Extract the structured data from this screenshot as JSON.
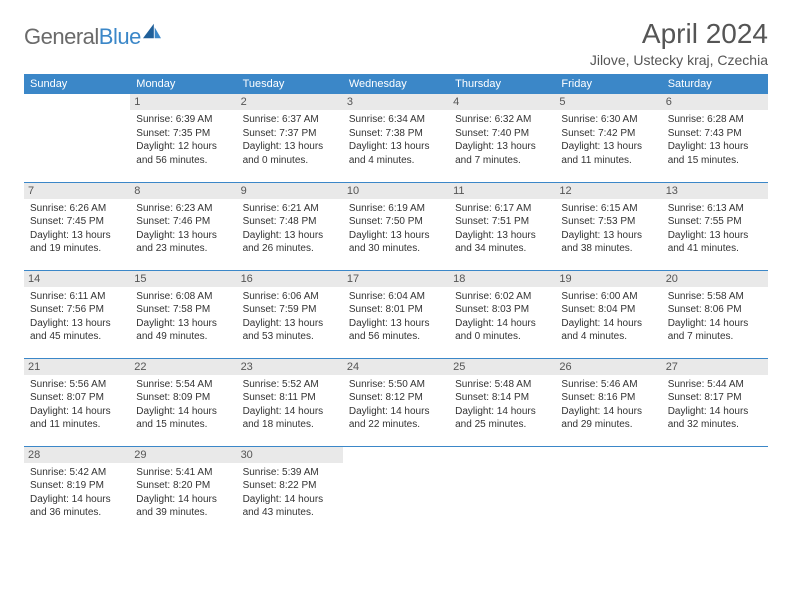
{
  "brand": {
    "part1": "General",
    "part2": "Blue"
  },
  "title": "April 2024",
  "location": "Jilove, Ustecky kraj, Czechia",
  "colors": {
    "header_bg": "#3b87c8",
    "header_text": "#ffffff",
    "daynum_bg": "#e9e9e9",
    "border": "#3b87c8",
    "logo_gray": "#6a6a6a",
    "logo_blue": "#3b87c8"
  },
  "weekdays": [
    "Sunday",
    "Monday",
    "Tuesday",
    "Wednesday",
    "Thursday",
    "Friday",
    "Saturday"
  ],
  "weeks": [
    [
      {
        "empty": true
      },
      {
        "n": "1",
        "sr": "Sunrise: 6:39 AM",
        "ss": "Sunset: 7:35 PM",
        "d1": "Daylight: 12 hours",
        "d2": "and 56 minutes."
      },
      {
        "n": "2",
        "sr": "Sunrise: 6:37 AM",
        "ss": "Sunset: 7:37 PM",
        "d1": "Daylight: 13 hours",
        "d2": "and 0 minutes."
      },
      {
        "n": "3",
        "sr": "Sunrise: 6:34 AM",
        "ss": "Sunset: 7:38 PM",
        "d1": "Daylight: 13 hours",
        "d2": "and 4 minutes."
      },
      {
        "n": "4",
        "sr": "Sunrise: 6:32 AM",
        "ss": "Sunset: 7:40 PM",
        "d1": "Daylight: 13 hours",
        "d2": "and 7 minutes."
      },
      {
        "n": "5",
        "sr": "Sunrise: 6:30 AM",
        "ss": "Sunset: 7:42 PM",
        "d1": "Daylight: 13 hours",
        "d2": "and 11 minutes."
      },
      {
        "n": "6",
        "sr": "Sunrise: 6:28 AM",
        "ss": "Sunset: 7:43 PM",
        "d1": "Daylight: 13 hours",
        "d2": "and 15 minutes."
      }
    ],
    [
      {
        "n": "7",
        "sr": "Sunrise: 6:26 AM",
        "ss": "Sunset: 7:45 PM",
        "d1": "Daylight: 13 hours",
        "d2": "and 19 minutes."
      },
      {
        "n": "8",
        "sr": "Sunrise: 6:23 AM",
        "ss": "Sunset: 7:46 PM",
        "d1": "Daylight: 13 hours",
        "d2": "and 23 minutes."
      },
      {
        "n": "9",
        "sr": "Sunrise: 6:21 AM",
        "ss": "Sunset: 7:48 PM",
        "d1": "Daylight: 13 hours",
        "d2": "and 26 minutes."
      },
      {
        "n": "10",
        "sr": "Sunrise: 6:19 AM",
        "ss": "Sunset: 7:50 PM",
        "d1": "Daylight: 13 hours",
        "d2": "and 30 minutes."
      },
      {
        "n": "11",
        "sr": "Sunrise: 6:17 AM",
        "ss": "Sunset: 7:51 PM",
        "d1": "Daylight: 13 hours",
        "d2": "and 34 minutes."
      },
      {
        "n": "12",
        "sr": "Sunrise: 6:15 AM",
        "ss": "Sunset: 7:53 PM",
        "d1": "Daylight: 13 hours",
        "d2": "and 38 minutes."
      },
      {
        "n": "13",
        "sr": "Sunrise: 6:13 AM",
        "ss": "Sunset: 7:55 PM",
        "d1": "Daylight: 13 hours",
        "d2": "and 41 minutes."
      }
    ],
    [
      {
        "n": "14",
        "sr": "Sunrise: 6:11 AM",
        "ss": "Sunset: 7:56 PM",
        "d1": "Daylight: 13 hours",
        "d2": "and 45 minutes."
      },
      {
        "n": "15",
        "sr": "Sunrise: 6:08 AM",
        "ss": "Sunset: 7:58 PM",
        "d1": "Daylight: 13 hours",
        "d2": "and 49 minutes."
      },
      {
        "n": "16",
        "sr": "Sunrise: 6:06 AM",
        "ss": "Sunset: 7:59 PM",
        "d1": "Daylight: 13 hours",
        "d2": "and 53 minutes."
      },
      {
        "n": "17",
        "sr": "Sunrise: 6:04 AM",
        "ss": "Sunset: 8:01 PM",
        "d1": "Daylight: 13 hours",
        "d2": "and 56 minutes."
      },
      {
        "n": "18",
        "sr": "Sunrise: 6:02 AM",
        "ss": "Sunset: 8:03 PM",
        "d1": "Daylight: 14 hours",
        "d2": "and 0 minutes."
      },
      {
        "n": "19",
        "sr": "Sunrise: 6:00 AM",
        "ss": "Sunset: 8:04 PM",
        "d1": "Daylight: 14 hours",
        "d2": "and 4 minutes."
      },
      {
        "n": "20",
        "sr": "Sunrise: 5:58 AM",
        "ss": "Sunset: 8:06 PM",
        "d1": "Daylight: 14 hours",
        "d2": "and 7 minutes."
      }
    ],
    [
      {
        "n": "21",
        "sr": "Sunrise: 5:56 AM",
        "ss": "Sunset: 8:07 PM",
        "d1": "Daylight: 14 hours",
        "d2": "and 11 minutes."
      },
      {
        "n": "22",
        "sr": "Sunrise: 5:54 AM",
        "ss": "Sunset: 8:09 PM",
        "d1": "Daylight: 14 hours",
        "d2": "and 15 minutes."
      },
      {
        "n": "23",
        "sr": "Sunrise: 5:52 AM",
        "ss": "Sunset: 8:11 PM",
        "d1": "Daylight: 14 hours",
        "d2": "and 18 minutes."
      },
      {
        "n": "24",
        "sr": "Sunrise: 5:50 AM",
        "ss": "Sunset: 8:12 PM",
        "d1": "Daylight: 14 hours",
        "d2": "and 22 minutes."
      },
      {
        "n": "25",
        "sr": "Sunrise: 5:48 AM",
        "ss": "Sunset: 8:14 PM",
        "d1": "Daylight: 14 hours",
        "d2": "and 25 minutes."
      },
      {
        "n": "26",
        "sr": "Sunrise: 5:46 AM",
        "ss": "Sunset: 8:16 PM",
        "d1": "Daylight: 14 hours",
        "d2": "and 29 minutes."
      },
      {
        "n": "27",
        "sr": "Sunrise: 5:44 AM",
        "ss": "Sunset: 8:17 PM",
        "d1": "Daylight: 14 hours",
        "d2": "and 32 minutes."
      }
    ],
    [
      {
        "n": "28",
        "sr": "Sunrise: 5:42 AM",
        "ss": "Sunset: 8:19 PM",
        "d1": "Daylight: 14 hours",
        "d2": "and 36 minutes."
      },
      {
        "n": "29",
        "sr": "Sunrise: 5:41 AM",
        "ss": "Sunset: 8:20 PM",
        "d1": "Daylight: 14 hours",
        "d2": "and 39 minutes."
      },
      {
        "n": "30",
        "sr": "Sunrise: 5:39 AM",
        "ss": "Sunset: 8:22 PM",
        "d1": "Daylight: 14 hours",
        "d2": "and 43 minutes."
      },
      {
        "empty": true
      },
      {
        "empty": true
      },
      {
        "empty": true
      },
      {
        "empty": true
      }
    ]
  ]
}
